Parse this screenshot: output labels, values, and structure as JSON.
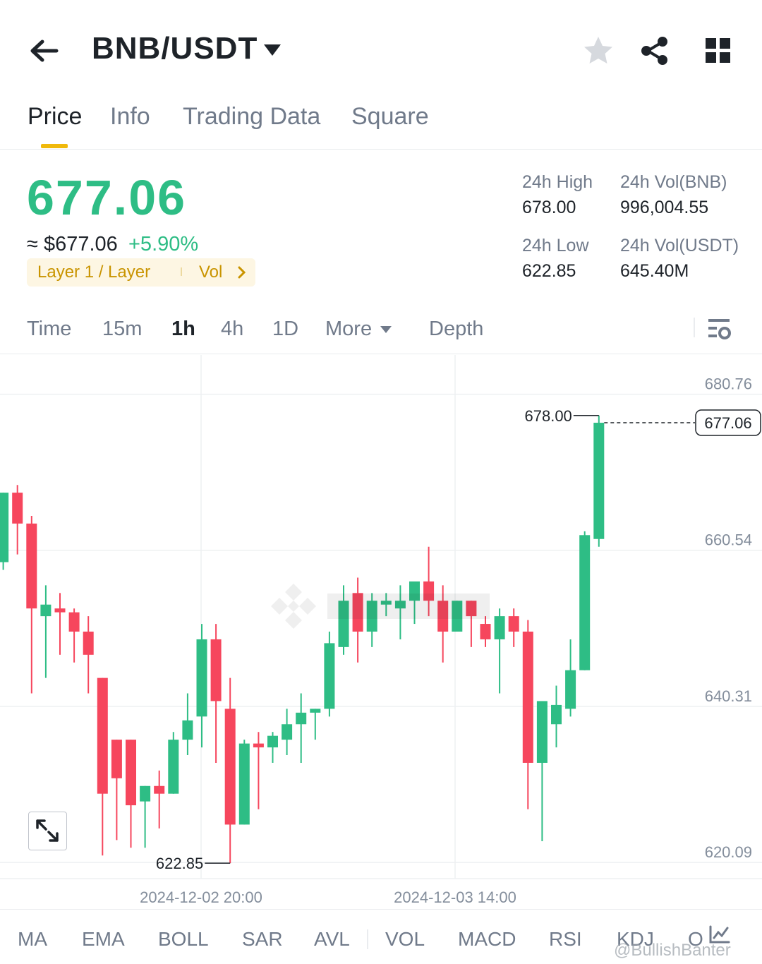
{
  "header": {
    "title": "BNB/USDT",
    "icons": {
      "back": "arrow-left-icon",
      "caret": "caret-down-icon",
      "favorite": "star-icon",
      "share": "share-icon",
      "layout": "grid-icon"
    }
  },
  "tabs": [
    {
      "label": "Price",
      "active": true
    },
    {
      "label": "Info",
      "active": false
    },
    {
      "label": "Trading Data",
      "active": false
    },
    {
      "label": "Square",
      "active": false
    }
  ],
  "price": {
    "last": "677.06",
    "usd": "≈ $677.06",
    "change": "+5.90%",
    "tag_label": "Layer 1 / Layer",
    "tag_vol": "Vol"
  },
  "stats": {
    "high_label": "24h High",
    "high_value": "678.00",
    "low_label": "24h Low",
    "low_value": "622.85",
    "vol_base_label": "24h Vol(BNB)",
    "vol_base_value": "996,004.55",
    "vol_quote_label": "24h Vol(USDT)",
    "vol_quote_value": "645.40M"
  },
  "intervals": [
    {
      "label": "Time",
      "active": false
    },
    {
      "label": "15m",
      "active": false
    },
    {
      "label": "1h",
      "active": true
    },
    {
      "label": "4h",
      "active": false
    },
    {
      "label": "1D",
      "active": false
    },
    {
      "label": "More",
      "active": false
    },
    {
      "label": "Depth",
      "active": false
    }
  ],
  "chart_data": {
    "type": "candlestick",
    "interval": "1h",
    "y_ticks": [
      "680.76",
      "660.54",
      "640.31",
      "620.09"
    ],
    "ylim": [
      618,
      682
    ],
    "x_ticks": [
      "2024-12-02 20:00",
      "2024-12-03 14:00"
    ],
    "high_marker": "678.00",
    "low_marker": "622.85",
    "last_price_label": "677.06",
    "last_price": 677.06,
    "colors": {
      "up": "#2ebd85",
      "down": "#f6465d"
    },
    "candles": [
      {
        "o": 659,
        "h": 668,
        "l": 658,
        "c": 668
      },
      {
        "o": 668,
        "h": 669,
        "l": 660,
        "c": 664
      },
      {
        "o": 664,
        "h": 665,
        "l": 642,
        "c": 653
      },
      {
        "o": 652,
        "h": 656,
        "l": 644,
        "c": 653.5
      },
      {
        "o": 653,
        "h": 655,
        "l": 647,
        "c": 652.5
      },
      {
        "o": 652.5,
        "h": 653,
        "l": 646,
        "c": 650
      },
      {
        "o": 650,
        "h": 652,
        "l": 642,
        "c": 647
      },
      {
        "o": 644,
        "h": 644,
        "l": 621,
        "c": 629
      },
      {
        "o": 636,
        "h": 636,
        "l": 623,
        "c": 631
      },
      {
        "o": 636,
        "h": 636,
        "l": 622,
        "c": 627.5
      },
      {
        "o": 628,
        "h": 630,
        "l": 622,
        "c": 630
      },
      {
        "o": 630,
        "h": 632,
        "l": 624.5,
        "c": 629
      },
      {
        "o": 629,
        "h": 637,
        "l": 629,
        "c": 636
      },
      {
        "o": 636,
        "h": 642,
        "l": 634,
        "c": 638.5
      },
      {
        "o": 639,
        "h": 651,
        "l": 635,
        "c": 649
      },
      {
        "o": 649,
        "h": 651,
        "l": 633,
        "c": 641
      },
      {
        "o": 640,
        "h": 644,
        "l": 620,
        "c": 625
      },
      {
        "o": 625,
        "h": 636,
        "l": 625,
        "c": 635.5
      },
      {
        "o": 635.5,
        "h": 637,
        "l": 627,
        "c": 635
      },
      {
        "o": 635,
        "h": 637,
        "l": 633,
        "c": 636.5
      },
      {
        "o": 636,
        "h": 640,
        "l": 634,
        "c": 638
      },
      {
        "o": 638,
        "h": 642,
        "l": 633,
        "c": 639.5
      },
      {
        "o": 639.5,
        "h": 640,
        "l": 636,
        "c": 640
      },
      {
        "o": 640,
        "h": 650,
        "l": 639,
        "c": 648.5
      },
      {
        "o": 648,
        "h": 656,
        "l": 647,
        "c": 654
      },
      {
        "o": 655,
        "h": 657,
        "l": 646,
        "c": 650
      },
      {
        "o": 650,
        "h": 655,
        "l": 648,
        "c": 654
      },
      {
        "o": 653.5,
        "h": 655,
        "l": 652,
        "c": 654
      },
      {
        "o": 653,
        "h": 656,
        "l": 649,
        "c": 654
      },
      {
        "o": 654,
        "h": 656,
        "l": 651,
        "c": 656.5
      },
      {
        "o": 656.5,
        "h": 661,
        "l": 652,
        "c": 654
      },
      {
        "o": 654,
        "h": 656,
        "l": 646,
        "c": 650
      },
      {
        "o": 650,
        "h": 654,
        "l": 650,
        "c": 654
      },
      {
        "o": 654,
        "h": 654,
        "l": 648,
        "c": 652
      },
      {
        "o": 651,
        "h": 652,
        "l": 648,
        "c": 649
      },
      {
        "o": 649,
        "h": 653,
        "l": 642,
        "c": 652
      },
      {
        "o": 652,
        "h": 653,
        "l": 648,
        "c": 650
      },
      {
        "o": 650,
        "h": 651.5,
        "l": 627,
        "c": 633
      },
      {
        "o": 633,
        "h": 641,
        "l": 622.85,
        "c": 641
      },
      {
        "o": 638,
        "h": 643,
        "l": 635,
        "c": 640.5
      },
      {
        "o": 640,
        "h": 649,
        "l": 639,
        "c": 645
      },
      {
        "o": 645,
        "h": 663,
        "l": 645,
        "c": 662.5
      },
      {
        "o": 662,
        "h": 678,
        "l": 661,
        "c": 677.06
      }
    ]
  },
  "indicators": [
    "MA",
    "EMA",
    "BOLL",
    "SAR",
    "AVL",
    "VOL",
    "MACD",
    "RSI",
    "KDJ",
    "O"
  ],
  "credit": "@BullishBanter"
}
